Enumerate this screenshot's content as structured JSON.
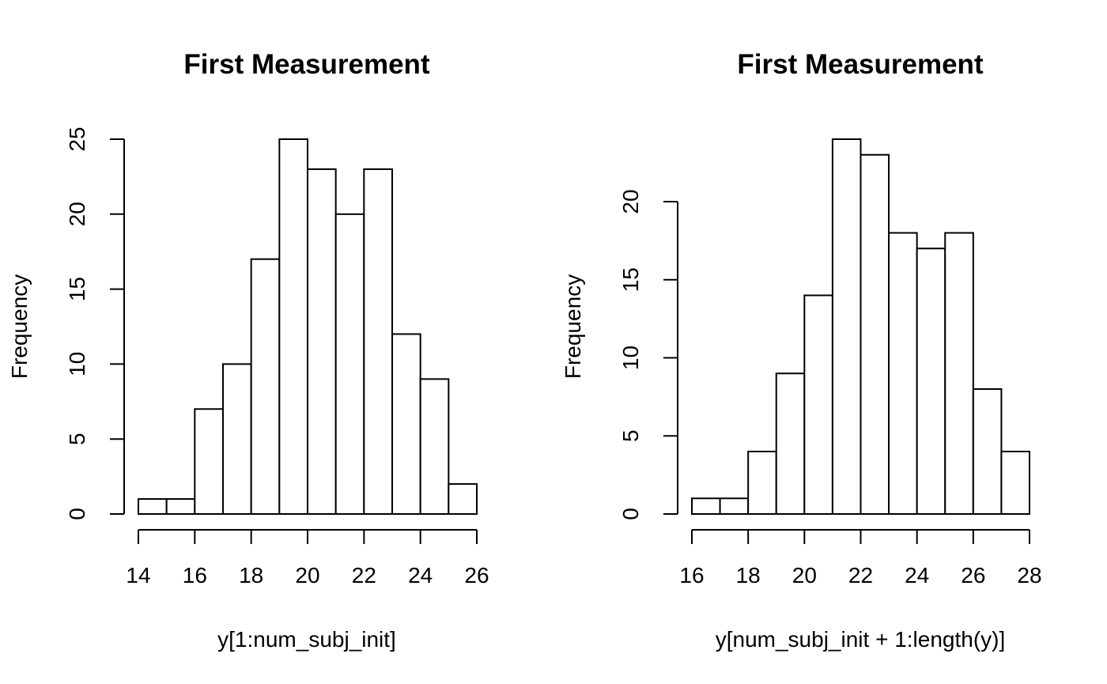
{
  "chart_data": [
    {
      "type": "bar",
      "title": "First Measurement",
      "xlabel": "y[1:num_subj_init]",
      "ylabel": "Frequency",
      "bin_edges": [
        14,
        15,
        16,
        17,
        18,
        19,
        20,
        21,
        22,
        23,
        24,
        25,
        26
      ],
      "values": [
        1,
        1,
        7,
        10,
        17,
        25,
        23,
        20,
        23,
        12,
        9,
        2
      ],
      "xticks": [
        14,
        16,
        18,
        20,
        22,
        24,
        26
      ],
      "yticks": [
        0,
        5,
        10,
        15,
        20,
        25
      ],
      "xlim": [
        14,
        26
      ],
      "ylim": [
        0,
        25
      ],
      "grid": false
    },
    {
      "type": "bar",
      "title": "First Measurement",
      "xlabel": "y[num_subj_init + 1:length(y)]",
      "ylabel": "Frequency",
      "bin_edges": [
        16,
        17,
        18,
        19,
        20,
        21,
        22,
        23,
        24,
        25,
        26,
        27,
        28
      ],
      "values": [
        1,
        1,
        4,
        9,
        14,
        24,
        23,
        18,
        17,
        18,
        8,
        4
      ],
      "xticks": [
        16,
        18,
        20,
        22,
        24,
        26,
        28
      ],
      "yticks": [
        0,
        5,
        10,
        15,
        20
      ],
      "xlim": [
        16,
        28
      ],
      "ylim": [
        0,
        24
      ],
      "grid": false
    }
  ]
}
